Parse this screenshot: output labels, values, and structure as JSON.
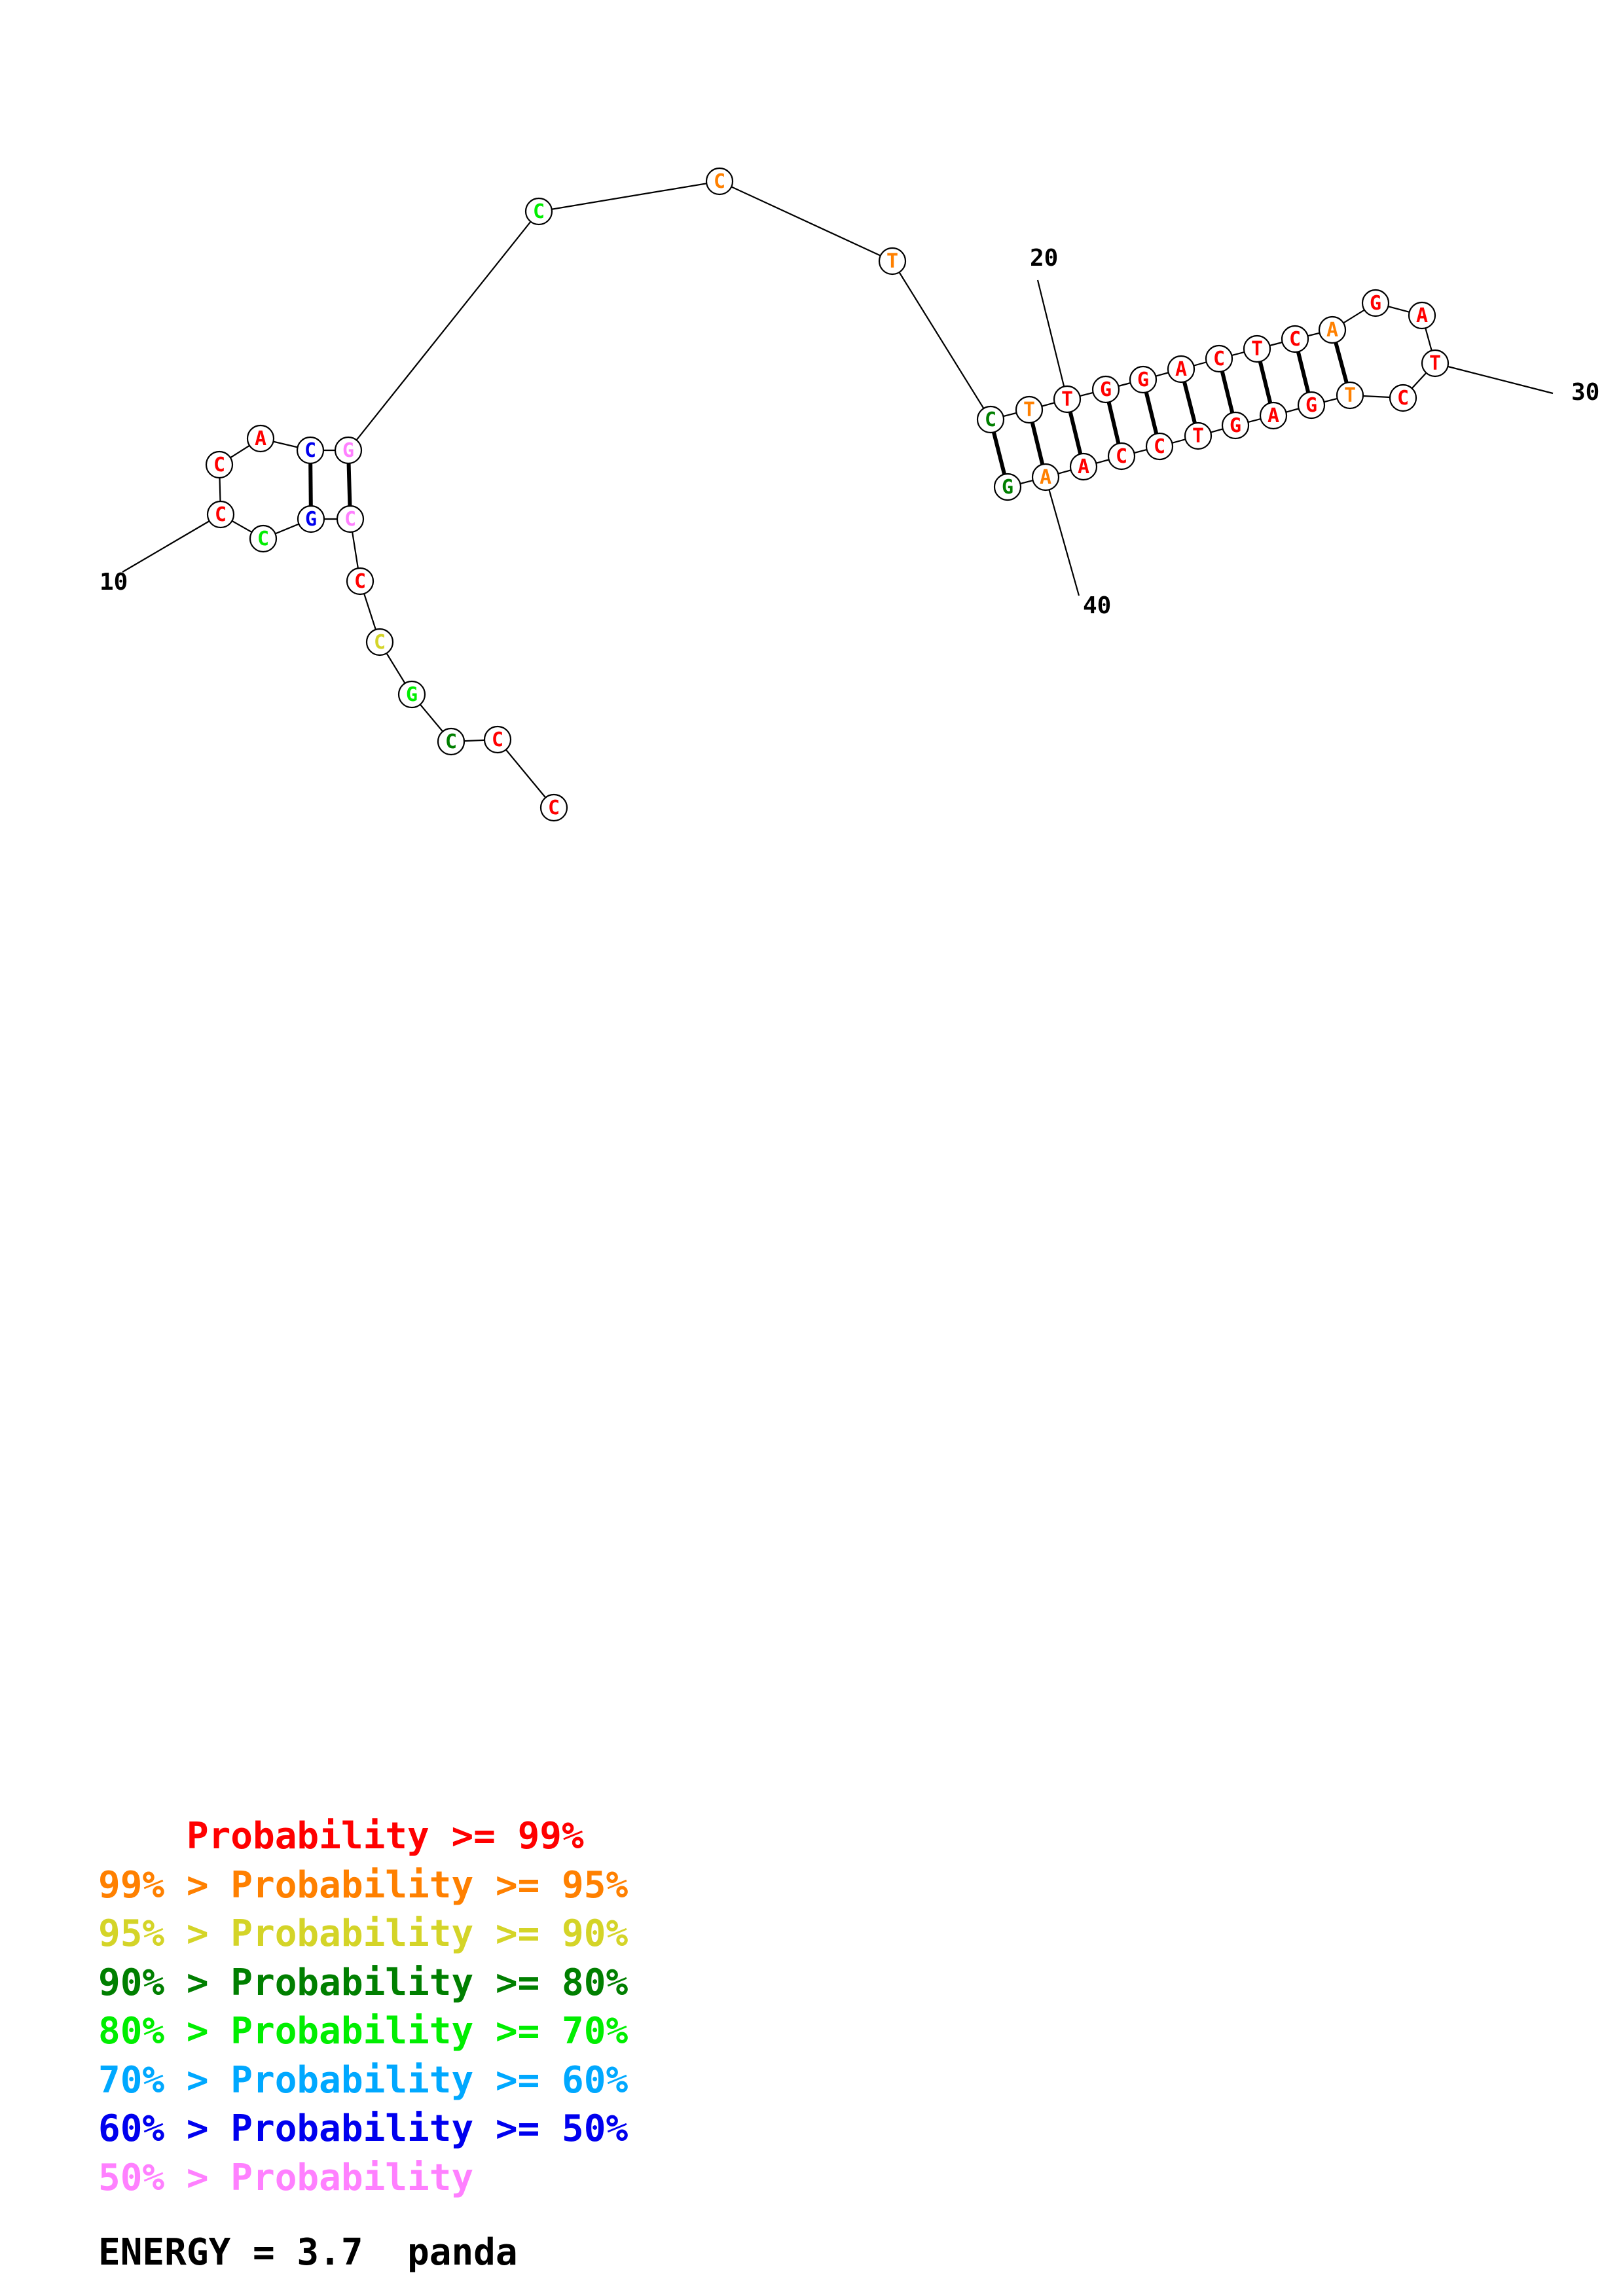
{
  "colors": {
    "p99": "#ff0000",
    "p95": "#ff8000",
    "p90": "#d4d428",
    "p80": "#007f00",
    "p70": "#00ee00",
    "p60": "#00a8ff",
    "p50": "#0000ee",
    "plow": "#ff80ff"
  },
  "structure": {
    "nucleotides": [
      {
        "i": 1,
        "base": "C",
        "prob": "p99"
      },
      {
        "i": 2,
        "base": "C",
        "prob": "p99"
      },
      {
        "i": 3,
        "base": "C",
        "prob": "p80"
      },
      {
        "i": 4,
        "base": "G",
        "prob": "p70"
      },
      {
        "i": 5,
        "base": "C",
        "prob": "p90"
      },
      {
        "i": 6,
        "base": "C",
        "prob": "p99"
      },
      {
        "i": 7,
        "base": "C",
        "prob": "plow"
      },
      {
        "i": 8,
        "base": "G",
        "prob": "p50"
      },
      {
        "i": 9,
        "base": "C",
        "prob": "p70"
      },
      {
        "i": 10,
        "base": "C",
        "prob": "p99"
      },
      {
        "i": 11,
        "base": "C",
        "prob": "p99"
      },
      {
        "i": 12,
        "base": "A",
        "prob": "p99"
      },
      {
        "i": 13,
        "base": "C",
        "prob": "p50"
      },
      {
        "i": 14,
        "base": "G",
        "prob": "plow"
      },
      {
        "i": 15,
        "base": "C",
        "prob": "p70"
      },
      {
        "i": 16,
        "base": "C",
        "prob": "p95"
      },
      {
        "i": 17,
        "base": "T",
        "prob": "p95"
      },
      {
        "i": 18,
        "base": "C",
        "prob": "p80"
      },
      {
        "i": 19,
        "base": "T",
        "prob": "p95"
      },
      {
        "i": 20,
        "base": "T",
        "prob": "p99"
      },
      {
        "i": 21,
        "base": "G",
        "prob": "p99"
      },
      {
        "i": 22,
        "base": "G",
        "prob": "p99"
      },
      {
        "i": 23,
        "base": "A",
        "prob": "p99"
      },
      {
        "i": 24,
        "base": "C",
        "prob": "p99"
      },
      {
        "i": 25,
        "base": "T",
        "prob": "p99"
      },
      {
        "i": 26,
        "base": "C",
        "prob": "p99"
      },
      {
        "i": 27,
        "base": "A",
        "prob": "p95"
      },
      {
        "i": 28,
        "base": "G",
        "prob": "p99"
      },
      {
        "i": 29,
        "base": "A",
        "prob": "p99"
      },
      {
        "i": 30,
        "base": "T",
        "prob": "p99"
      },
      {
        "i": 31,
        "base": "C",
        "prob": "p99"
      },
      {
        "i": 32,
        "base": "T",
        "prob": "p95"
      },
      {
        "i": 33,
        "base": "G",
        "prob": "p99"
      },
      {
        "i": 34,
        "base": "A",
        "prob": "p99"
      },
      {
        "i": 35,
        "base": "G",
        "prob": "p99"
      },
      {
        "i": 36,
        "base": "T",
        "prob": "p99"
      },
      {
        "i": 37,
        "base": "C",
        "prob": "p99"
      },
      {
        "i": 38,
        "base": "C",
        "prob": "p99"
      },
      {
        "i": 39,
        "base": "A",
        "prob": "p99"
      },
      {
        "i": 40,
        "base": "A",
        "prob": "p95"
      },
      {
        "i": 41,
        "base": "G",
        "prob": "p80"
      }
    ],
    "pairs": [
      [
        7,
        14
      ],
      [
        8,
        13
      ],
      [
        18,
        41
      ],
      [
        19,
        40
      ],
      [
        20,
        39
      ],
      [
        21,
        38
      ],
      [
        22,
        37
      ],
      [
        23,
        36
      ],
      [
        24,
        35
      ],
      [
        25,
        34
      ],
      [
        26,
        33
      ],
      [
        27,
        32
      ]
    ],
    "position_labels": [
      {
        "index": 10,
        "text": "10"
      },
      {
        "index": 20,
        "text": "20"
      },
      {
        "index": 30,
        "text": "30"
      },
      {
        "index": 40,
        "text": "40"
      }
    ]
  },
  "legend": [
    {
      "prefix": "    ",
      "text": "    Probability >= 99%",
      "color": "p99"
    },
    {
      "text": "99% > Probability >= 95%",
      "color": "p95"
    },
    {
      "text": "95% > Probability >= 90%",
      "color": "p90"
    },
    {
      "text": "90% > Probability >= 80%",
      "color": "p80"
    },
    {
      "text": "80% > Probability >= 70%",
      "color": "p70"
    },
    {
      "text": "70% > Probability >= 60%",
      "color": "p60"
    },
    {
      "text": "60% > Probability >= 50%",
      "color": "p50"
    },
    {
      "text": "50% > Probability",
      "color": "plow"
    }
  ],
  "energy_text": "ENERGY = 3.7  panda"
}
